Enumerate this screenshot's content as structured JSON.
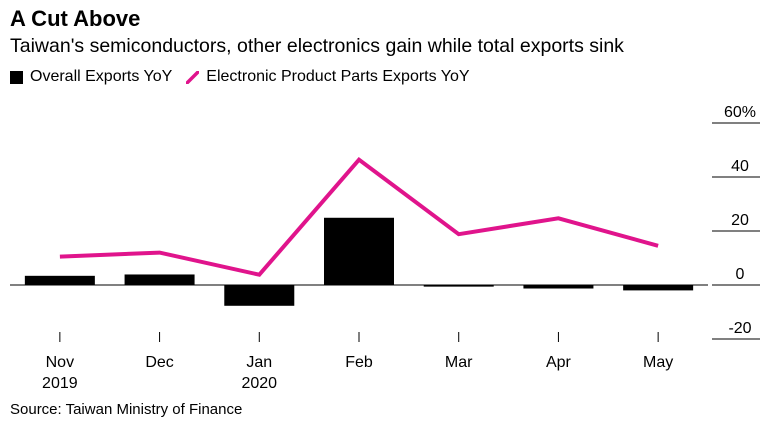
{
  "title": "A Cut Above",
  "subtitle": "Taiwan's semiconductors, other electronics gain while total exports sink",
  "source": "Source: Taiwan Ministry of Finance",
  "colors": {
    "bars": "#000000",
    "line": "#e0148c",
    "axis": "#000000",
    "grid": "#d9d9d9"
  },
  "chart_data": {
    "type": "bar",
    "categories": [
      "Nov",
      "Dec",
      "Jan",
      "Feb",
      "Mar",
      "Apr",
      "May"
    ],
    "category_sublabels": [
      "2019",
      "",
      "2020",
      "",
      "",
      "",
      ""
    ],
    "series": [
      {
        "name": "Overall Exports YoY",
        "kind": "bar",
        "values": [
          3.4,
          3.9,
          -7.7,
          24.9,
          -0.6,
          -1.3,
          -2.0
        ]
      },
      {
        "name": "Electronic Product Parts Exports YoY",
        "kind": "line",
        "values": [
          10.5,
          12.0,
          3.8,
          46.4,
          18.8,
          24.7,
          14.5
        ]
      }
    ],
    "ylim": [
      -20,
      60
    ],
    "yticks": [
      -20,
      0,
      20,
      40,
      60
    ],
    "ytick_labels": [
      "-20",
      "0",
      "20",
      "40",
      "60%"
    ],
    "axis_position": "right",
    "legend_position": "top-left"
  }
}
